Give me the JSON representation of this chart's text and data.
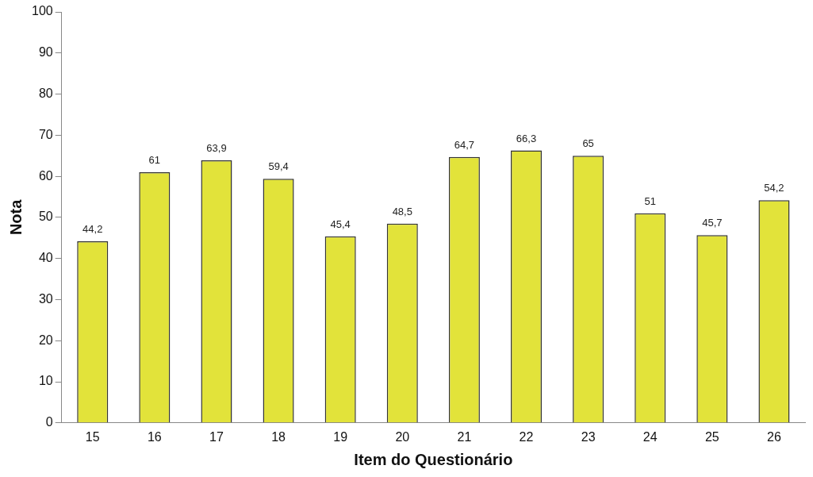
{
  "chart_data": {
    "type": "bar",
    "xlabel": "Item do Questionário",
    "ylabel": "Nota",
    "categories": [
      "15",
      "16",
      "17",
      "18",
      "19",
      "20",
      "21",
      "22",
      "23",
      "24",
      "25",
      "26"
    ],
    "values": [
      44.2,
      61,
      63.9,
      59.4,
      45.4,
      48.5,
      64.7,
      66.3,
      65,
      51,
      45.7,
      54.2
    ],
    "value_labels": [
      "44,2",
      "61",
      "63,9",
      "59,4",
      "45,4",
      "48,5",
      "64,7",
      "66,3",
      "65",
      "51",
      "45,7",
      "54,2"
    ],
    "color": "#e2e33a",
    "ylim": [
      0,
      100
    ],
    "yticks": [
      0,
      10,
      20,
      30,
      40,
      50,
      60,
      70,
      80,
      90,
      100
    ],
    "grid": false,
    "legend": false
  }
}
